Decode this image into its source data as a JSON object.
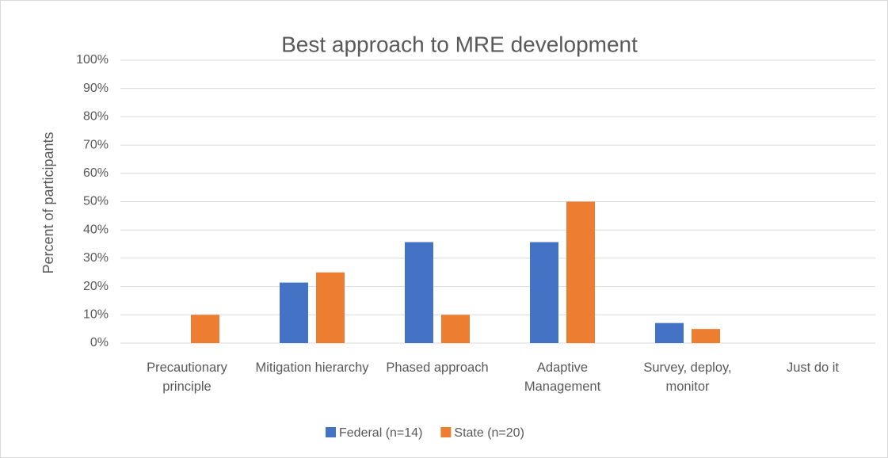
{
  "chart_data": {
    "type": "bar",
    "title": "Best approach to MRE development",
    "ylabel": "Percent of participants",
    "categories": [
      "Precautionary principle",
      "Mitigation hierarchy",
      "Phased approach",
      "Adaptive Management",
      "Survey, deploy, monitor",
      "Just do it"
    ],
    "series": [
      {
        "name": "Federal (n=14)",
        "color": "#4472c4",
        "values": [
          0,
          21.4,
          35.7,
          35.7,
          7.1,
          0
        ]
      },
      {
        "name": "State (n=20)",
        "color": "#ed7d31",
        "values": [
          10,
          25,
          10,
          50,
          5,
          0
        ]
      }
    ],
    "ylim": [
      0,
      100
    ],
    "yticks": [
      {
        "value": 0,
        "label": "0%"
      },
      {
        "value": 10,
        "label": "10%"
      },
      {
        "value": 20,
        "label": "20%"
      },
      {
        "value": 30,
        "label": "30%"
      },
      {
        "value": 40,
        "label": "40%"
      },
      {
        "value": 50,
        "label": "50%"
      },
      {
        "value": 60,
        "label": "60%"
      },
      {
        "value": 70,
        "label": "70%"
      },
      {
        "value": 80,
        "label": "80%"
      },
      {
        "value": 90,
        "label": "90%"
      },
      {
        "value": 100,
        "label": "100%"
      }
    ],
    "grid": true,
    "legend": "bottom"
  }
}
